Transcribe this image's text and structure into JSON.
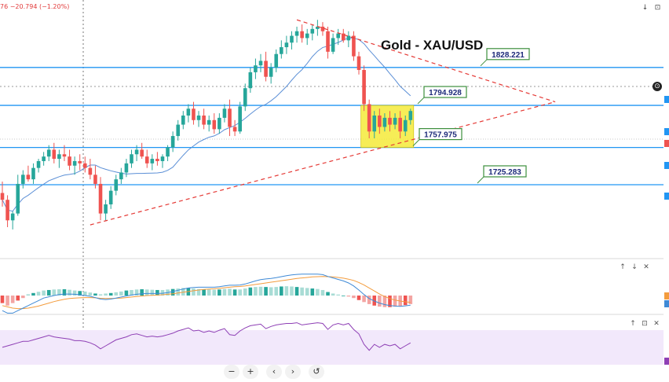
{
  "header": {
    "change_text": "76  −20.794  (−1.20%)"
  },
  "colors": {
    "up": "#26a69a",
    "down": "#ef5350",
    "level_line": "#2196f3",
    "trend_line": "#e53935",
    "ma_line": "#5b8fd6",
    "box_fill": "#f5ea3a",
    "label_border": "#3d8f3d",
    "rsi_bg": "#f2e8fb",
    "rsi_line": "#8e3fb5",
    "macd_line": "#3f8ad6",
    "signal_line": "#f39c3d"
  },
  "chart_data": {
    "type": "candlestick",
    "title": "Gold - XAU/USD",
    "ylim": [
      1668,
      1875
    ],
    "levels": [
      {
        "value": 1828.221,
        "label": "1828.221"
      },
      {
        "value": 1794.928,
        "label": "1794.928"
      },
      {
        "value": 1757.975,
        "label": "1757.975"
      },
      {
        "value": 1725.283,
        "label": "1725.283"
      }
    ],
    "candles": [
      [
        1718,
        1728,
        1706,
        1712
      ],
      [
        1712,
        1716,
        1688,
        1694
      ],
      [
        1694,
        1702,
        1686,
        1700
      ],
      [
        1700,
        1734,
        1698,
        1726
      ],
      [
        1726,
        1738,
        1722,
        1734
      ],
      [
        1734,
        1742,
        1728,
        1730
      ],
      [
        1730,
        1744,
        1726,
        1740
      ],
      [
        1740,
        1748,
        1736,
        1746
      ],
      [
        1746,
        1754,
        1742,
        1750
      ],
      [
        1750,
        1760,
        1746,
        1756
      ],
      [
        1756,
        1762,
        1744,
        1748
      ],
      [
        1748,
        1756,
        1740,
        1752
      ],
      [
        1752,
        1760,
        1746,
        1750
      ],
      [
        1750,
        1756,
        1738,
        1742
      ],
      [
        1742,
        1750,
        1734,
        1746
      ],
      [
        1746,
        1752,
        1738,
        1744
      ],
      [
        1744,
        1750,
        1736,
        1740
      ],
      [
        1740,
        1748,
        1730,
        1734
      ],
      [
        1734,
        1742,
        1722,
        1726
      ],
      [
        1726,
        1732,
        1694,
        1700
      ],
      [
        1700,
        1712,
        1694,
        1708
      ],
      [
        1708,
        1724,
        1704,
        1720
      ],
      [
        1720,
        1734,
        1716,
        1730
      ],
      [
        1730,
        1740,
        1726,
        1736
      ],
      [
        1736,
        1748,
        1732,
        1744
      ],
      [
        1744,
        1756,
        1740,
        1752
      ],
      [
        1752,
        1760,
        1746,
        1756
      ],
      [
        1756,
        1762,
        1748,
        1750
      ],
      [
        1750,
        1756,
        1740,
        1744
      ],
      [
        1744,
        1752,
        1738,
        1748
      ],
      [
        1748,
        1754,
        1742,
        1746
      ],
      [
        1746,
        1752,
        1740,
        1750
      ],
      [
        1750,
        1760,
        1746,
        1758
      ],
      [
        1758,
        1772,
        1754,
        1768
      ],
      [
        1768,
        1782,
        1764,
        1778
      ],
      [
        1778,
        1790,
        1774,
        1786
      ],
      [
        1786,
        1796,
        1780,
        1792
      ],
      [
        1792,
        1798,
        1778,
        1782
      ],
      [
        1782,
        1790,
        1776,
        1786
      ],
      [
        1786,
        1792,
        1774,
        1778
      ],
      [
        1778,
        1786,
        1772,
        1782
      ],
      [
        1782,
        1788,
        1770,
        1774
      ],
      [
        1774,
        1788,
        1770,
        1784
      ],
      [
        1784,
        1796,
        1780,
        1792
      ],
      [
        1792,
        1800,
        1768,
        1776
      ],
      [
        1776,
        1782,
        1768,
        1772
      ],
      [
        1772,
        1798,
        1770,
        1794
      ],
      [
        1794,
        1814,
        1790,
        1810
      ],
      [
        1810,
        1828,
        1806,
        1824
      ],
      [
        1824,
        1836,
        1818,
        1830
      ],
      [
        1830,
        1840,
        1824,
        1834
      ],
      [
        1834,
        1842,
        1816,
        1820
      ],
      [
        1820,
        1832,
        1814,
        1828
      ],
      [
        1828,
        1844,
        1824,
        1840
      ],
      [
        1840,
        1852,
        1836,
        1846
      ],
      [
        1846,
        1856,
        1840,
        1850
      ],
      [
        1850,
        1860,
        1844,
        1856
      ],
      [
        1856,
        1864,
        1850,
        1860
      ],
      [
        1860,
        1866,
        1850,
        1854
      ],
      [
        1854,
        1862,
        1848,
        1858
      ],
      [
        1858,
        1866,
        1852,
        1862
      ],
      [
        1862,
        1870,
        1856,
        1864
      ],
      [
        1864,
        1868,
        1856,
        1860
      ],
      [
        1860,
        1864,
        1836,
        1842
      ],
      [
        1842,
        1858,
        1840,
        1854
      ],
      [
        1854,
        1862,
        1848,
        1858
      ],
      [
        1858,
        1862,
        1850,
        1852
      ],
      [
        1852,
        1860,
        1846,
        1856
      ],
      [
        1856,
        1860,
        1834,
        1838
      ],
      [
        1838,
        1842,
        1822,
        1826
      ],
      [
        1826,
        1830,
        1790,
        1796
      ],
      [
        1796,
        1800,
        1766,
        1772
      ],
      [
        1772,
        1790,
        1766,
        1786
      ],
      [
        1786,
        1792,
        1770,
        1776
      ],
      [
        1776,
        1788,
        1772,
        1784
      ],
      [
        1784,
        1790,
        1772,
        1778
      ],
      [
        1778,
        1788,
        1774,
        1784
      ],
      [
        1784,
        1790,
        1766,
        1772
      ],
      [
        1772,
        1786,
        1768,
        1782
      ],
      [
        1782,
        1792,
        1778,
        1790
      ]
    ]
  },
  "macd": {
    "histogram": [
      -3,
      -4,
      -3,
      -2,
      -1,
      0.5,
      1,
      1.5,
      2,
      2.2,
      2.4,
      2.5,
      2.5,
      2.3,
      2,
      1.8,
      1.6,
      1.2,
      0.8,
      0.5,
      0.8,
      1,
      1.3,
      1.6,
      2,
      2.2,
      2.4,
      2.5,
      2.4,
      2.3,
      2.2,
      2.2,
      2.4,
      2.6,
      2.8,
      3,
      3,
      2.8,
      2.6,
      2.5,
      2.4,
      2.3,
      2.4,
      2.6,
      2.7,
      2.4,
      2.4,
      2.8,
      3.2,
      3.4,
      3.5,
      3.4,
      3.3,
      3.4,
      3.6,
      3.7,
      3.6,
      3.4,
      3.2,
      3,
      2.8,
      2.6,
      2.2,
      1.4,
      0.8,
      0.4,
      0,
      -0.4,
      -1,
      -1.8,
      -2.6,
      -3.4,
      -4,
      -4.4,
      -4.6,
      -4.6,
      -4.4,
      -4.2,
      -3.8,
      -3.4
    ],
    "macd_line": [
      -6,
      -7,
      -7,
      -6,
      -5,
      -4,
      -3,
      -2,
      -1,
      -0.5,
      0,
      0.4,
      0.6,
      0.6,
      0.5,
      0.3,
      0,
      -0.3,
      -0.8,
      -1.4,
      -1.6,
      -1.4,
      -1,
      -0.6,
      -0.2,
      0.2,
      0.5,
      0.7,
      0.8,
      0.8,
      0.8,
      0.9,
      1.2,
      1.6,
      2.1,
      2.6,
      3,
      3.2,
      3.3,
      3.3,
      3.3,
      3.3,
      3.5,
      3.8,
      4.1,
      4.1,
      4.2,
      4.6,
      5.2,
      5.8,
      6.3,
      6.6,
      6.8,
      7.1,
      7.5,
      7.9,
      8.2,
      8.4,
      8.5,
      8.5,
      8.5,
      8.5,
      8.3,
      7.6,
      7,
      6.4,
      5.8,
      5,
      3.8,
      2.2,
      0.4,
      -1.2,
      -2.2,
      -3,
      -3.6,
      -4,
      -4.2,
      -4.3,
      -4.1,
      -3.8
    ],
    "signal_line": [
      -4,
      -4.5,
      -5,
      -5.2,
      -5.2,
      -5,
      -4.6,
      -4.2,
      -3.6,
      -3,
      -2.4,
      -1.9,
      -1.5,
      -1.2,
      -1,
      -0.9,
      -0.8,
      -0.8,
      -0.9,
      -1.1,
      -1.2,
      -1.2,
      -1.1,
      -1,
      -0.8,
      -0.6,
      -0.4,
      -0.2,
      0,
      0.1,
      0.2,
      0.3,
      0.5,
      0.7,
      1,
      1.3,
      1.6,
      1.9,
      2.2,
      2.4,
      2.6,
      2.7,
      2.9,
      3.1,
      3.3,
      3.5,
      3.6,
      3.8,
      4.1,
      4.4,
      4.7,
      5,
      5.3,
      5.6,
      5.9,
      6.2,
      6.5,
      6.8,
      7,
      7.2,
      7.4,
      7.5,
      7.6,
      7.5,
      7.4,
      7.2,
      6.9,
      6.5,
      6,
      5.2,
      4.2,
      3,
      1.8,
      0.6,
      -0.4,
      -1.2,
      -1.8,
      -2.2,
      -2.5,
      -2.7
    ]
  },
  "rsi": {
    "values": [
      38,
      40,
      42,
      44,
      46,
      46,
      48,
      50,
      52,
      54,
      52,
      51,
      50,
      49,
      47,
      47,
      46,
      44,
      41,
      36,
      40,
      44,
      48,
      50,
      52,
      55,
      56,
      54,
      52,
      53,
      52,
      53,
      55,
      57,
      60,
      62,
      64,
      60,
      61,
      58,
      60,
      58,
      61,
      63,
      55,
      54,
      60,
      64,
      67,
      68,
      69,
      63,
      66,
      68,
      69,
      70,
      70,
      71,
      68,
      69,
      70,
      71,
      70,
      62,
      68,
      70,
      68,
      70,
      62,
      56,
      42,
      34,
      42,
      38,
      42,
      40,
      42,
      36,
      40,
      44
    ]
  },
  "controls": {
    "zoom_out": "−",
    "zoom_in": "+",
    "prev": "‹",
    "next": "›",
    "reset": "↺",
    "up": "↑",
    "down": "↓",
    "close": "✕",
    "drop": "↓",
    "minimize": "⊡"
  }
}
